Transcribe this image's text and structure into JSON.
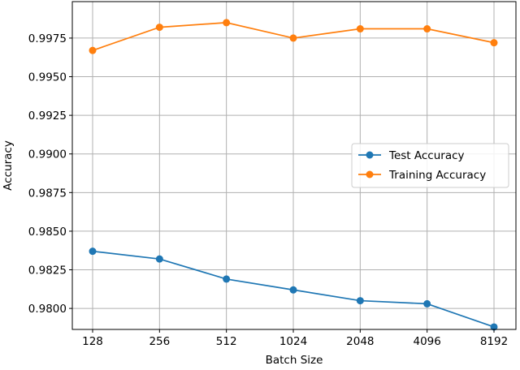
{
  "chart_data": {
    "type": "line",
    "title": "",
    "xlabel": "Batch Size",
    "ylabel": "Accuracy",
    "categories": [
      "128",
      "256",
      "512",
      "1024",
      "2048",
      "4096",
      "8192"
    ],
    "yticks": [
      "0.9800",
      "0.9825",
      "0.9850",
      "0.9875",
      "0.9900",
      "0.9925",
      "0.9950",
      "0.9975"
    ],
    "ylim": [
      0.97864,
      0.99986
    ],
    "grid": true,
    "legend_position": "center-right",
    "series": [
      {
        "name": "Test Accuracy",
        "color": "#1f77b4",
        "values": [
          0.9837,
          0.9832,
          0.9819,
          0.9812,
          0.9805,
          0.9803,
          0.9788
        ]
      },
      {
        "name": "Training Accuracy",
        "color": "#ff7f0e",
        "values": [
          0.9967,
          0.9982,
          0.9985,
          0.9975,
          0.9981,
          0.9981,
          0.9972
        ]
      }
    ]
  }
}
